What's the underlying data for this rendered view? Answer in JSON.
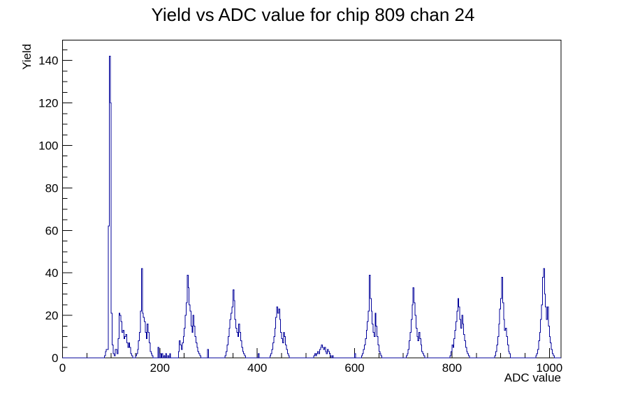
{
  "page": {
    "background": "#ffffff"
  },
  "chart_data": {
    "type": "bar",
    "title": "Yield vs ADC value for chip 809 chan 24",
    "xlabel": "ADC value",
    "ylabel": "Yield",
    "x_range": [
      0,
      1024
    ],
    "y_range": [
      0,
      149.6
    ],
    "x_major_ticks": [
      0,
      200,
      400,
      600,
      800,
      1000
    ],
    "x_minor_step": 50,
    "y_major_ticks": [
      0,
      20,
      40,
      60,
      80,
      100,
      120,
      140
    ],
    "y_minor_step": 5,
    "grid": false,
    "legend": "none",
    "line_color": "#00009a",
    "frame_color": "#000000",
    "bin_width": 2,
    "bins": [
      [
        86,
        1
      ],
      [
        88,
        3
      ],
      [
        90,
        4
      ],
      [
        92,
        4
      ],
      [
        94,
        62
      ],
      [
        96,
        142
      ],
      [
        98,
        120
      ],
      [
        100,
        21
      ],
      [
        102,
        6
      ],
      [
        104,
        2
      ],
      [
        106,
        1
      ],
      [
        108,
        4
      ],
      [
        110,
        4
      ],
      [
        112,
        2
      ],
      [
        114,
        9
      ],
      [
        116,
        21
      ],
      [
        118,
        20
      ],
      [
        120,
        17
      ],
      [
        122,
        12
      ],
      [
        124,
        13
      ],
      [
        126,
        9
      ],
      [
        128,
        10
      ],
      [
        130,
        11
      ],
      [
        132,
        7
      ],
      [
        134,
        5
      ],
      [
        136,
        7
      ],
      [
        138,
        5
      ],
      [
        140,
        2
      ],
      [
        142,
        1
      ],
      [
        150,
        1
      ],
      [
        152,
        2
      ],
      [
        154,
        4
      ],
      [
        156,
        8
      ],
      [
        158,
        12
      ],
      [
        160,
        22
      ],
      [
        162,
        42
      ],
      [
        164,
        21
      ],
      [
        166,
        19
      ],
      [
        168,
        17
      ],
      [
        170,
        12
      ],
      [
        172,
        9
      ],
      [
        174,
        16
      ],
      [
        176,
        12
      ],
      [
        178,
        7
      ],
      [
        180,
        3
      ],
      [
        182,
        2
      ],
      [
        184,
        1
      ],
      [
        196,
        5
      ],
      [
        200,
        2
      ],
      [
        204,
        2
      ],
      [
        208,
        1
      ],
      [
        212,
        2
      ],
      [
        216,
        1
      ],
      [
        220,
        2
      ],
      [
        238,
        3
      ],
      [
        240,
        8
      ],
      [
        242,
        6
      ],
      [
        244,
        4
      ],
      [
        246,
        7
      ],
      [
        248,
        10
      ],
      [
        250,
        14
      ],
      [
        252,
        20
      ],
      [
        254,
        26
      ],
      [
        256,
        39
      ],
      [
        258,
        33
      ],
      [
        260,
        25
      ],
      [
        262,
        22
      ],
      [
        264,
        15
      ],
      [
        266,
        12
      ],
      [
        268,
        20
      ],
      [
        270,
        15
      ],
      [
        272,
        10
      ],
      [
        274,
        7
      ],
      [
        276,
        5
      ],
      [
        278,
        3
      ],
      [
        280,
        2
      ],
      [
        282,
        1
      ],
      [
        298,
        4
      ],
      [
        334,
        1
      ],
      [
        336,
        3
      ],
      [
        338,
        6
      ],
      [
        340,
        10
      ],
      [
        342,
        14
      ],
      [
        344,
        18
      ],
      [
        346,
        21
      ],
      [
        348,
        24
      ],
      [
        350,
        32
      ],
      [
        352,
        27
      ],
      [
        354,
        18
      ],
      [
        356,
        14
      ],
      [
        358,
        12
      ],
      [
        360,
        10
      ],
      [
        362,
        16
      ],
      [
        364,
        12
      ],
      [
        366,
        8
      ],
      [
        368,
        5
      ],
      [
        370,
        3
      ],
      [
        372,
        2
      ],
      [
        374,
        1
      ],
      [
        402,
        2
      ],
      [
        426,
        1
      ],
      [
        428,
        2
      ],
      [
        430,
        4
      ],
      [
        432,
        7
      ],
      [
        434,
        10
      ],
      [
        436,
        14
      ],
      [
        438,
        19
      ],
      [
        440,
        24
      ],
      [
        442,
        21
      ],
      [
        444,
        23
      ],
      [
        446,
        18
      ],
      [
        448,
        12
      ],
      [
        450,
        9
      ],
      [
        452,
        7
      ],
      [
        454,
        12
      ],
      [
        456,
        10
      ],
      [
        458,
        6
      ],
      [
        460,
        4
      ],
      [
        462,
        2
      ],
      [
        464,
        1
      ],
      [
        516,
        1
      ],
      [
        518,
        2
      ],
      [
        520,
        1
      ],
      [
        522,
        2
      ],
      [
        524,
        3
      ],
      [
        526,
        2
      ],
      [
        528,
        4
      ],
      [
        530,
        5
      ],
      [
        532,
        6
      ],
      [
        534,
        5
      ],
      [
        536,
        4
      ],
      [
        538,
        5
      ],
      [
        540,
        3
      ],
      [
        542,
        2
      ],
      [
        544,
        4
      ],
      [
        546,
        3
      ],
      [
        548,
        2
      ],
      [
        550,
        1
      ],
      [
        554,
        1
      ],
      [
        600,
        2
      ],
      [
        614,
        1
      ],
      [
        616,
        2
      ],
      [
        618,
        4
      ],
      [
        620,
        6
      ],
      [
        622,
        9
      ],
      [
        624,
        13
      ],
      [
        626,
        17
      ],
      [
        628,
        22
      ],
      [
        630,
        39
      ],
      [
        632,
        28
      ],
      [
        634,
        22
      ],
      [
        636,
        16
      ],
      [
        638,
        12
      ],
      [
        640,
        10
      ],
      [
        642,
        21
      ],
      [
        644,
        15
      ],
      [
        646,
        10
      ],
      [
        648,
        6
      ],
      [
        650,
        3
      ],
      [
        652,
        2
      ],
      [
        654,
        1
      ],
      [
        706,
        1
      ],
      [
        708,
        2
      ],
      [
        710,
        4
      ],
      [
        712,
        8
      ],
      [
        714,
        12
      ],
      [
        716,
        18
      ],
      [
        718,
        25
      ],
      [
        720,
        33
      ],
      [
        722,
        26
      ],
      [
        724,
        20
      ],
      [
        726,
        14
      ],
      [
        728,
        10
      ],
      [
        730,
        8
      ],
      [
        732,
        12
      ],
      [
        734,
        9
      ],
      [
        736,
        6
      ],
      [
        738,
        3
      ],
      [
        740,
        2
      ],
      [
        742,
        1
      ],
      [
        796,
        1
      ],
      [
        798,
        3
      ],
      [
        800,
        6
      ],
      [
        802,
        5
      ],
      [
        804,
        9
      ],
      [
        806,
        13
      ],
      [
        808,
        17
      ],
      [
        810,
        22
      ],
      [
        812,
        28
      ],
      [
        814,
        24
      ],
      [
        816,
        18
      ],
      [
        818,
        14
      ],
      [
        820,
        20
      ],
      [
        822,
        16
      ],
      [
        824,
        11
      ],
      [
        826,
        8
      ],
      [
        828,
        5
      ],
      [
        830,
        3
      ],
      [
        832,
        2
      ],
      [
        834,
        1
      ],
      [
        888,
        1
      ],
      [
        890,
        3
      ],
      [
        892,
        6
      ],
      [
        894,
        10
      ],
      [
        896,
        16
      ],
      [
        898,
        23
      ],
      [
        900,
        28
      ],
      [
        902,
        38
      ],
      [
        904,
        26
      ],
      [
        906,
        18
      ],
      [
        908,
        13
      ],
      [
        910,
        14
      ],
      [
        912,
        10
      ],
      [
        914,
        6
      ],
      [
        916,
        3
      ],
      [
        918,
        2
      ],
      [
        972,
        1
      ],
      [
        974,
        2
      ],
      [
        976,
        4
      ],
      [
        978,
        8
      ],
      [
        980,
        12
      ],
      [
        982,
        18
      ],
      [
        984,
        25
      ],
      [
        986,
        38
      ],
      [
        988,
        42
      ],
      [
        990,
        30
      ],
      [
        992,
        24
      ],
      [
        994,
        18
      ],
      [
        996,
        24
      ],
      [
        998,
        15
      ],
      [
        1000,
        10
      ],
      [
        1002,
        7
      ],
      [
        1004,
        4
      ],
      [
        1006,
        2
      ],
      [
        1008,
        1
      ]
    ]
  }
}
